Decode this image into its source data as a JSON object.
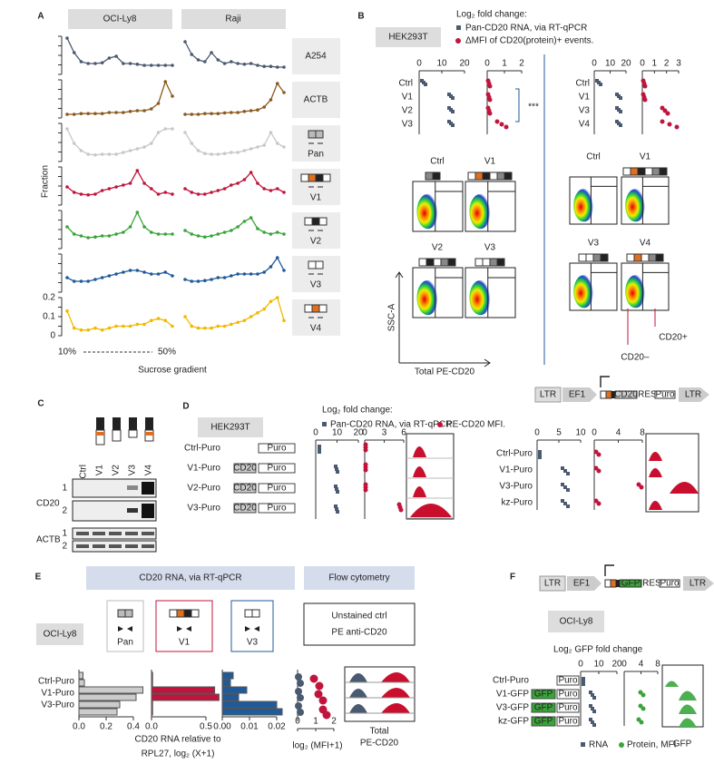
{
  "panels": {
    "A": {
      "label": "A",
      "headers": [
        "OCI-Ly8",
        "Raji"
      ],
      "y_label": "Fraction",
      "x_label": "Sucrose gradient",
      "xticks": [
        {
          "value": 10,
          "label": "10%"
        },
        {
          "value": 50,
          "label": "50%"
        }
      ],
      "last_row_ylim": [
        0,
        0.2
      ],
      "last_row_yticks": [
        0,
        0.1,
        0.2
      ],
      "rows": [
        {
          "label": "A254",
          "color": "#4a5a70",
          "OCI-Ly8": [
            1.0,
            0.6,
            0.35,
            0.3,
            0.3,
            0.32,
            0.45,
            0.5,
            0.3,
            0.3,
            0.28,
            0.25,
            0.25,
            0.25,
            0.25,
            0.25
          ],
          "Raji": [
            0.9,
            0.55,
            0.4,
            0.35,
            0.6,
            0.4,
            0.3,
            0.35,
            0.3,
            0.28,
            0.3,
            0.25,
            0.22,
            0.22,
            0.2,
            0.2
          ]
        },
        {
          "label": "ACTB",
          "color": "#8b5a1e",
          "OCI-Ly8": [
            0.1,
            0.1,
            0.12,
            0.12,
            0.12,
            0.12,
            0.15,
            0.15,
            0.15,
            0.18,
            0.2,
            0.2,
            0.25,
            0.4,
            1.0,
            0.6
          ],
          "Raji": [
            0.1,
            0.1,
            0.1,
            0.12,
            0.12,
            0.12,
            0.14,
            0.15,
            0.15,
            0.18,
            0.2,
            0.22,
            0.3,
            0.5,
            0.95,
            0.7
          ]
        },
        {
          "label": "Pan",
          "color": "#c8c8c8",
          "OCI-Ly8": [
            0.9,
            0.5,
            0.3,
            0.2,
            0.18,
            0.2,
            0.2,
            0.2,
            0.25,
            0.3,
            0.35,
            0.4,
            0.5,
            0.8,
            0.9,
            0.9
          ],
          "Raji": [
            0.8,
            0.5,
            0.3,
            0.22,
            0.2,
            0.2,
            0.22,
            0.25,
            0.25,
            0.3,
            0.35,
            0.4,
            0.45,
            0.8,
            0.5,
            0.4
          ]
        },
        {
          "label": "V1",
          "color": "#c0143c",
          "OCI-Ly8": [
            0.5,
            0.35,
            0.3,
            0.28,
            0.3,
            0.4,
            0.45,
            0.5,
            0.55,
            0.6,
            0.95,
            0.6,
            0.45,
            0.3,
            0.35,
            0.3
          ],
          "Raji": [
            0.45,
            0.35,
            0.3,
            0.3,
            0.35,
            0.4,
            0.45,
            0.55,
            0.6,
            0.7,
            0.9,
            0.6,
            0.45,
            0.4,
            0.45,
            0.35
          ]
        },
        {
          "label": "V2",
          "color": "#3aa43a",
          "OCI-Ly8": [
            0.6,
            0.4,
            0.35,
            0.3,
            0.32,
            0.35,
            0.35,
            0.4,
            0.45,
            0.6,
            1.0,
            0.6,
            0.45,
            0.4,
            0.4,
            0.4
          ],
          "Raji": [
            0.5,
            0.4,
            0.35,
            0.32,
            0.35,
            0.4,
            0.45,
            0.5,
            0.6,
            0.75,
            0.85,
            0.55,
            0.45,
            0.4,
            0.45,
            0.4
          ]
        },
        {
          "label": "V3",
          "color": "#1f5a99",
          "OCI-Ly8": [
            0.4,
            0.3,
            0.3,
            0.3,
            0.35,
            0.4,
            0.45,
            0.5,
            0.55,
            0.6,
            0.6,
            0.55,
            0.5,
            0.5,
            0.55,
            0.45
          ],
          "Raji": [
            0.35,
            0.3,
            0.3,
            0.32,
            0.35,
            0.4,
            0.4,
            0.45,
            0.5,
            0.5,
            0.5,
            0.5,
            0.55,
            0.7,
            0.95,
            0.6
          ]
        },
        {
          "label": "V4",
          "color": "#f2b900",
          "OCI-Ly8": [
            0.13,
            0.04,
            0.03,
            0.03,
            0.04,
            0.03,
            0.04,
            0.05,
            0.05,
            0.05,
            0.06,
            0.06,
            0.08,
            0.09,
            0.08,
            0.05
          ],
          "Raji": [
            0.1,
            0.05,
            0.04,
            0.04,
            0.04,
            0.05,
            0.05,
            0.06,
            0.07,
            0.08,
            0.1,
            0.12,
            0.14,
            0.18,
            0.2,
            0.08
          ]
        }
      ]
    },
    "B": {
      "label": "B",
      "cell_line": "HEK293T",
      "legend_title": "Log₂ fold change:",
      "legend": [
        "Pan-CD20 RNA, via RT-qPCR",
        "ΔMFI of CD20(protein)+ events."
      ],
      "left_rows": [
        "Ctrl",
        "V1",
        "V2",
        "V3"
      ],
      "right_rows": [
        "Ctrl",
        "V1",
        "V3",
        "V4"
      ],
      "left_rna_ticks": [
        0,
        10,
        20
      ],
      "left_mfi_ticks": [
        0,
        1,
        2
      ],
      "right_rna_ticks": [
        0,
        10,
        20
      ],
      "right_mfi_ticks": [
        0,
        1,
        2,
        3
      ],
      "significance": "***",
      "flow_left": [
        "Ctrl",
        "V1",
        "V2",
        "V3"
      ],
      "flow_right": [
        "Ctrl",
        "V1",
        "V3",
        "V4"
      ],
      "y_axis": "SSC-A",
      "x_axis": "Total PE-CD20",
      "gates": [
        "CD20–",
        "CD20+"
      ]
    },
    "C": {
      "label": "C",
      "lanes": [
        "Ctrl",
        "V1",
        "V2",
        "V3",
        "V4"
      ],
      "blots": [
        "CD20",
        "ACTB"
      ],
      "exposures": [
        "1",
        "2",
        "1",
        "2"
      ]
    },
    "D": {
      "label": "D",
      "cell_line": "HEK293T",
      "legend_title": "Log₂ fold change:",
      "legend": [
        "Pan-CD20 RNA, via RT-qPCR.",
        "PE-CD20 MFI."
      ],
      "construct": [
        "LTR",
        "EF1",
        "CD20",
        "IRES",
        "Puro",
        "LTR"
      ],
      "left_rows": [
        "Ctrl-Puro",
        "V1-Puro",
        "V2-Puro",
        "V3-Puro"
      ],
      "right_rows": [
        "Ctrl-Puro",
        "V1-Puro",
        "V3-Puro",
        "kz-Puro"
      ],
      "left_rna_ticks": [
        0,
        10,
        20
      ],
      "left_mfi_ticks": [
        0,
        3,
        6
      ],
      "right_rna_ticks": [
        0,
        5,
        10
      ],
      "right_mfi_ticks": [
        0,
        4,
        8
      ],
      "box_labels": [
        "CD20",
        "Puro"
      ]
    },
    "E": {
      "label": "E",
      "headers": [
        "CD20 RNA, via RT-qPCR",
        "Flow cytometry"
      ],
      "cell_line": "OCI-Ly8",
      "probes": [
        "Pan",
        "V1",
        "V3"
      ],
      "flow_legend": [
        "Unstained ctrl",
        "PE anti-CD20"
      ],
      "rows": [
        "Ctrl-Puro",
        "V1-Puro",
        "V3-Puro"
      ],
      "pan_ticks": [
        {
          "value": 0,
          "label": "0.0"
        },
        {
          "value": 0.2,
          "label": "0.2"
        },
        {
          "value": 0.4,
          "label": "0.4"
        }
      ],
      "v1_ticks": [
        {
          "value": 0,
          "label": "0.0"
        },
        {
          "value": 0.5,
          "label": "0.5"
        }
      ],
      "v3_ticks": [
        {
          "value": 0,
          "label": "0.00"
        },
        0.01,
        0.02
      ],
      "mfi_ticks": [
        0,
        1,
        2
      ],
      "x_label": [
        "CD20 RNA relative to",
        "RPL27, log₂ (X+1)"
      ],
      "mfi_label": "log₂ (MFI+1)",
      "hist_label": [
        "Total",
        "PE-CD20"
      ]
    },
    "F": {
      "label": "F",
      "construct": [
        "LTR",
        "EF1",
        "GFP",
        "IRES",
        "Puro",
        "LTR"
      ],
      "cell_line": "OCI-Ly8",
      "axis_title": "Log₂ GFP fold change",
      "rna_ticks": [
        0,
        10,
        20
      ],
      "mfi_ticks": [
        0,
        4,
        8
      ],
      "rows": [
        "Ctrl-Puro",
        "V1-GFP",
        "V3-GFP",
        "kz-GFP"
      ],
      "legend": [
        "RNA",
        "Protein, MFI"
      ],
      "hist_label": "GFP",
      "box_labels": [
        "GFP",
        "Puro"
      ]
    }
  }
}
